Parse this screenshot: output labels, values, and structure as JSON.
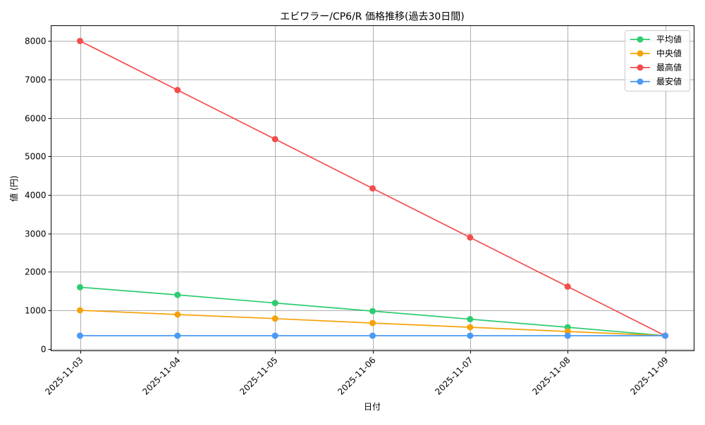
{
  "chart_data": {
    "type": "line",
    "title": "エビワラー/CP6/R 価格推移(過去30日間)",
    "xlabel": "日付",
    "ylabel": "値 (円)",
    "categories": [
      "2025-11-03",
      "2025-11-04",
      "2025-11-05",
      "2025-11-06",
      "2025-11-07",
      "2025-11-08",
      "2025-11-09"
    ],
    "series": [
      {
        "name": "平均値",
        "color": "#2ecc71",
        "values": [
          1600,
          1400,
          1190,
          980,
          770,
          560,
          340
        ]
      },
      {
        "name": "中央値",
        "color": "#f5a20a",
        "values": [
          1000,
          890,
          785,
          670,
          560,
          450,
          340
        ]
      },
      {
        "name": "最高値",
        "color": "#f44d4d",
        "values": [
          8000,
          6723,
          5447,
          4170,
          2893,
          1617,
          340
        ]
      },
      {
        "name": "最安値",
        "color": "#4a9af5",
        "values": [
          340,
          340,
          340,
          340,
          340,
          340,
          340
        ]
      }
    ],
    "ylim": [
      -40,
      8400
    ],
    "yticks": [
      0,
      1000,
      2000,
      3000,
      4000,
      5000,
      6000,
      7000,
      8000
    ],
    "grid": true,
    "legend_position": "upper right",
    "marker": "circle"
  }
}
